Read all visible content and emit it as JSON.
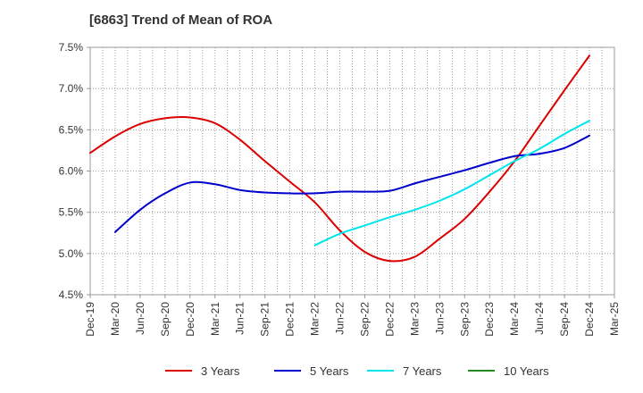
{
  "chart_data": {
    "type": "line",
    "title": "[6863]  Trend of Mean of ROA",
    "xlabel": "",
    "ylabel": "",
    "categories": [
      "Dec-19",
      "Mar-20",
      "Jun-20",
      "Sep-20",
      "Dec-20",
      "Mar-21",
      "Jun-21",
      "Sep-21",
      "Dec-21",
      "Mar-22",
      "Jun-22",
      "Sep-22",
      "Dec-22",
      "Mar-23",
      "Jun-23",
      "Sep-23",
      "Dec-23",
      "Mar-24",
      "Jun-24",
      "Sep-24",
      "Dec-24",
      "Mar-25"
    ],
    "ylim": [
      4.5,
      7.5
    ],
    "yticks": [
      "4.5%",
      "5.0%",
      "5.5%",
      "6.0%",
      "6.5%",
      "7.0%",
      "7.5%"
    ],
    "grid": true,
    "legend_position": "bottom",
    "series": [
      {
        "name": "3 Years",
        "color": "#dd0000",
        "values": [
          6.22,
          6.42,
          6.57,
          6.64,
          6.65,
          6.58,
          6.38,
          6.12,
          5.87,
          5.62,
          5.28,
          5.02,
          4.91,
          4.96,
          5.18,
          5.42,
          5.75,
          6.12,
          6.55,
          6.98,
          7.4,
          null
        ]
      },
      {
        "name": "5 Years",
        "color": "#0000cc",
        "values": [
          null,
          5.26,
          5.53,
          5.73,
          5.86,
          5.84,
          5.77,
          5.74,
          5.73,
          5.73,
          5.75,
          5.75,
          5.76,
          5.85,
          5.93,
          6.01,
          6.1,
          6.18,
          6.21,
          6.28,
          6.43,
          null
        ]
      },
      {
        "name": "7 Years",
        "color": "#00e5ee",
        "values": [
          null,
          null,
          null,
          null,
          null,
          null,
          null,
          null,
          null,
          5.1,
          5.24,
          5.34,
          5.44,
          5.53,
          5.64,
          5.78,
          5.95,
          6.12,
          6.27,
          6.45,
          6.61,
          null
        ]
      },
      {
        "name": "10 Years",
        "color": "#228b22",
        "values": [
          null,
          null,
          null,
          null,
          null,
          null,
          null,
          null,
          null,
          null,
          null,
          null,
          null,
          null,
          null,
          null,
          null,
          null,
          null,
          null,
          null,
          null
        ]
      }
    ]
  }
}
